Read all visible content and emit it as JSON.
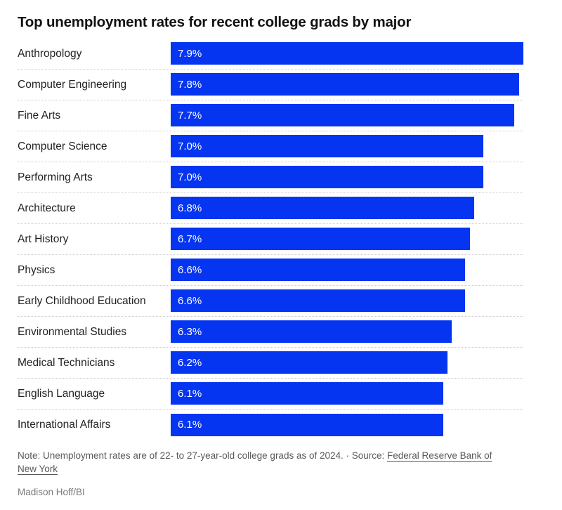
{
  "title": "Top unemployment rates for recent college grads by major",
  "accent_color": "#0535f0",
  "chart_data": {
    "type": "bar",
    "orientation": "horizontal",
    "title": "Top unemployment rates for recent college grads by major",
    "categories": [
      "Anthropology",
      "Computer Engineering",
      "Fine Arts",
      "Computer Science",
      "Performing Arts",
      "Architecture",
      "Art History",
      "Physics",
      "Early Childhood Education",
      "Environmental Studies",
      "Medical Technicians",
      "English Language",
      "International Affairs"
    ],
    "values": [
      7.9,
      7.8,
      7.7,
      7.0,
      7.0,
      6.8,
      6.7,
      6.6,
      6.6,
      6.3,
      6.2,
      6.1,
      6.1
    ],
    "value_labels": [
      "7.9%",
      "7.8%",
      "7.7%",
      "7.0%",
      "7.0%",
      "6.8%",
      "6.7%",
      "6.6%",
      "6.6%",
      "6.3%",
      "6.2%",
      "6.1%",
      "6.1%"
    ],
    "unit": "%",
    "xlim": [
      0,
      7.9
    ],
    "bar_color": "#0535f0",
    "value_label_position": "inside-left",
    "value_label_color": "#ffffff",
    "grid": false,
    "legend": false,
    "row_separator": "dotted"
  },
  "footer": {
    "note_prefix": "Note: Unemployment rates are of 22- to 27-year-old college grads as of 2024. · Source: ",
    "source_link": "Federal Reserve Bank of New York",
    "credit": "Madison Hoff/BI"
  }
}
